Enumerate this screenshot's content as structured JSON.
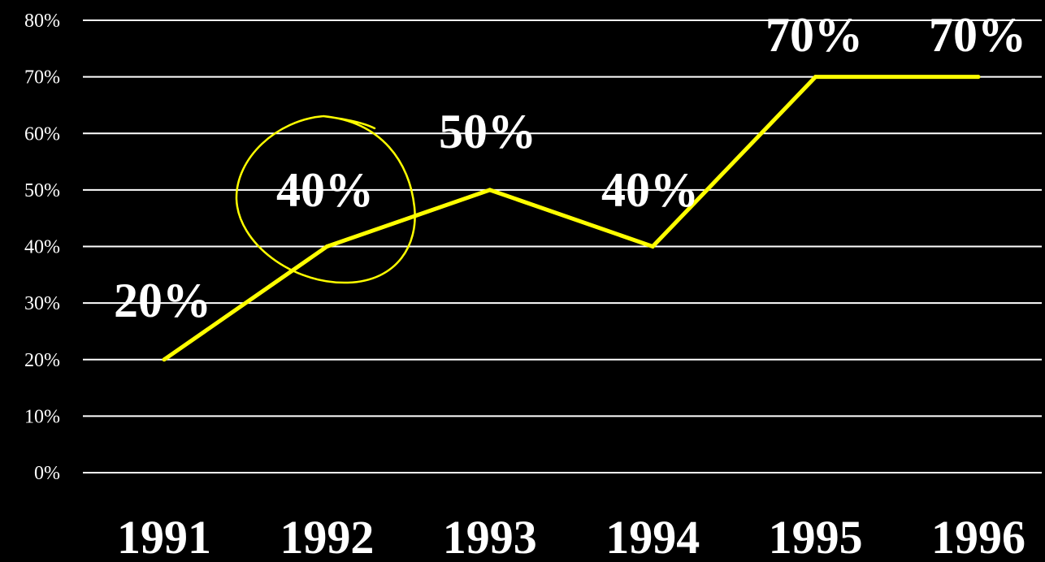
{
  "colors": {
    "background": "#000000",
    "gridline": "#ffffff",
    "series_line": "#ffff00",
    "text": "#ffffff"
  },
  "chart_data": {
    "type": "line",
    "categories": [
      "1991",
      "1992",
      "1993",
      "1994",
      "1995",
      "1996"
    ],
    "series": [
      {
        "values": [
          20,
          40,
          50,
          40,
          70,
          70
        ]
      }
    ],
    "data_labels": [
      "20%",
      "40%",
      "50%",
      "40%",
      "70%",
      "70%"
    ],
    "ylim": [
      0,
      80
    ],
    "y_ticks": [
      "0%",
      "10%",
      "20%",
      "30%",
      "40%",
      "50%",
      "60%",
      "70%",
      "80%"
    ],
    "grid": true,
    "annotation": "hand-drawn circle around 1992 point"
  }
}
